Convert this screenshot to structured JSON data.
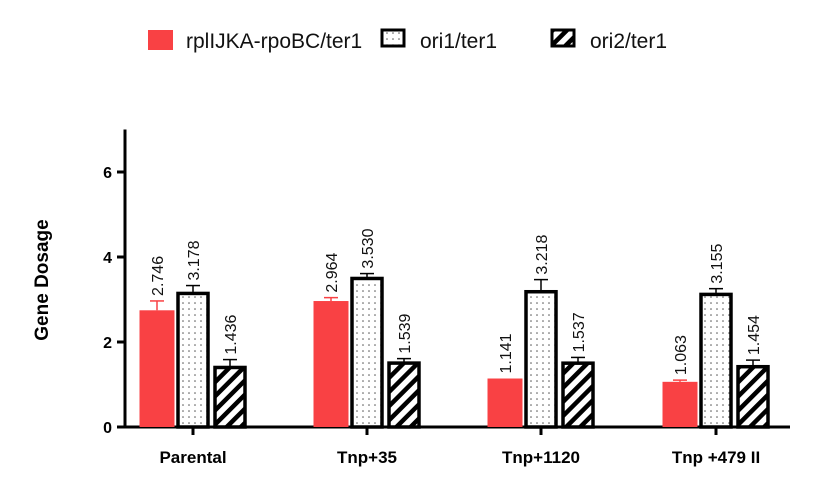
{
  "chart_data": {
    "type": "bar",
    "title": "",
    "xlabel": "",
    "ylabel": "Gene Dosage",
    "ylim": [
      0,
      7
    ],
    "yticks": [
      0,
      2,
      4,
      6
    ],
    "grid": false,
    "legend_position": "top",
    "categories": [
      "Parental",
      "Tnp+35",
      "Tnp+1120",
      "Tnp +479 II"
    ],
    "series": [
      {
        "name": "rplIJKA-rpoBC/ter1",
        "pattern": "solid",
        "color": "#f94144",
        "values": [
          2.746,
          2.964,
          1.141,
          1.063
        ],
        "labels": [
          "2.746",
          "2.964",
          "1.141",
          "1.063"
        ],
        "errors": [
          0.22,
          0.08,
          0.0,
          0.04
        ]
      },
      {
        "name": "ori1/ter1",
        "pattern": "dots",
        "color": "#000000",
        "values": [
          3.178,
          3.53,
          3.218,
          3.155
        ],
        "labels": [
          "3.178",
          "3.530",
          "3.218",
          "3.155"
        ],
        "errors": [
          0.15,
          0.08,
          0.25,
          0.1
        ]
      },
      {
        "name": "ori2/ter1",
        "pattern": "hatch",
        "color": "#000000",
        "values": [
          1.436,
          1.539,
          1.537,
          1.454
        ],
        "labels": [
          "1.436",
          "1.539",
          "1.537",
          "1.454"
        ],
        "errors": [
          0.15,
          0.07,
          0.1,
          0.12
        ]
      }
    ]
  }
}
